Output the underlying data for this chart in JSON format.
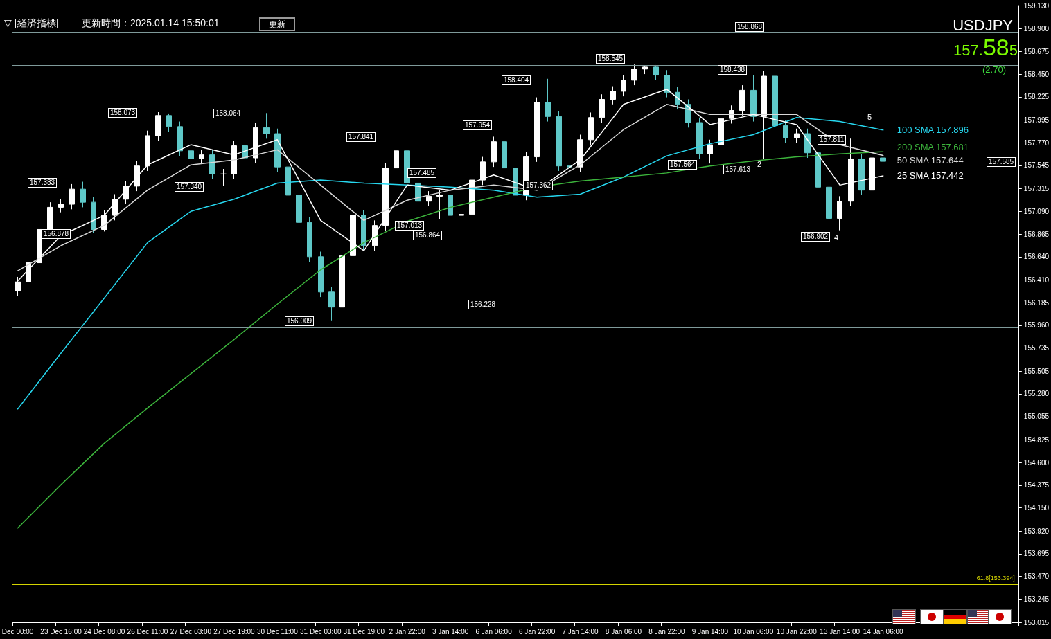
{
  "chart_data": {
    "type": "candlestick",
    "title": "USDJPY",
    "categories": [
      "Dec 00:00",
      null,
      null,
      null,
      "23 Dec 16:00",
      null,
      null,
      null,
      "24 Dec 08:00",
      null,
      null,
      null,
      "26 Dec 11:00",
      null,
      null,
      null,
      "27 Dec 03:00",
      null,
      null,
      null,
      "27 Dec 19:00",
      null,
      null,
      null,
      "30 Dec 11:00",
      null,
      null,
      null,
      "31 Dec 03:00",
      null,
      null,
      null,
      "31 Dec 19:00",
      null,
      null,
      null,
      "2 Jan 22:00",
      null,
      null,
      null,
      "3 Jan 14:00",
      null,
      null,
      null,
      "6 Jan 06:00",
      null,
      null,
      null,
      "6 Jan 22:00",
      null,
      null,
      null,
      "7 Jan 14:00",
      null,
      null,
      null,
      "8 Jan 06:00",
      null,
      null,
      null,
      "8 Jan 22:00",
      null,
      null,
      null,
      "9 Jan 14:00",
      null,
      null,
      null,
      "10 Jan 06:00",
      null,
      null,
      null,
      "10 Jan 22:00",
      null,
      null,
      null,
      "13 Jan 14:00",
      null,
      null,
      null,
      "14 Jan 06:00",
      null,
      null,
      null,
      null,
      null,
      null,
      null,
      null,
      null,
      null,
      null,
      null
    ],
    "series": [
      {
        "ohlc": [
          [
            156.3,
            156.44,
            156.25,
            156.39
          ],
          [
            156.39,
            156.63,
            156.34,
            156.58
          ],
          [
            156.58,
            156.96,
            156.53,
            156.91
          ],
          [
            156.91,
            157.18,
            156.86,
            157.13
          ],
          [
            157.13,
            157.21,
            157.08,
            157.16
          ],
          [
            157.16,
            157.36,
            157.11,
            157.31
          ],
          [
            157.31,
            157.383,
            157.13,
            157.18
          ],
          [
            157.18,
            157.23,
            156.878,
            156.91
          ],
          [
            156.91,
            157.1,
            156.89,
            157.05
          ],
          [
            157.05,
            157.26,
            157.0,
            157.21
          ],
          [
            157.21,
            157.39,
            157.16,
            157.34
          ],
          [
            157.34,
            157.59,
            157.29,
            157.54
          ],
          [
            157.54,
            157.89,
            157.49,
            157.84
          ],
          [
            157.84,
            158.073,
            157.79,
            158.04
          ],
          [
            158.04,
            158.06,
            157.88,
            157.93
          ],
          [
            157.93,
            157.98,
            157.64,
            157.69
          ],
          [
            157.69,
            157.74,
            157.56,
            157.61
          ],
          [
            157.61,
            157.7,
            157.56,
            157.65
          ],
          [
            157.65,
            157.7,
            157.41,
            157.46
          ],
          [
            157.46,
            157.51,
            157.34,
            157.46
          ],
          [
            157.46,
            157.79,
            157.41,
            157.74
          ],
          [
            157.74,
            157.79,
            157.57,
            157.62
          ],
          [
            157.62,
            157.97,
            157.57,
            157.92
          ],
          [
            157.92,
            158.064,
            157.81,
            157.86
          ],
          [
            157.86,
            157.91,
            157.48,
            157.53
          ],
          [
            157.53,
            157.58,
            157.2,
            157.25
          ],
          [
            157.25,
            157.3,
            156.93,
            156.98
          ],
          [
            156.98,
            157.03,
            156.59,
            156.64
          ],
          [
            156.64,
            156.69,
            156.24,
            156.29
          ],
          [
            156.29,
            156.34,
            156.009,
            156.14
          ],
          [
            156.14,
            156.7,
            156.09,
            156.65
          ],
          [
            156.65,
            157.1,
            156.6,
            157.05
          ],
          [
            157.05,
            157.1,
            156.7,
            156.75
          ],
          [
            156.75,
            157.0,
            156.7,
            156.95
          ],
          [
            156.95,
            157.57,
            156.9,
            157.52
          ],
          [
            157.52,
            157.841,
            157.47,
            157.69
          ],
          [
            157.69,
            157.74,
            157.32,
            157.37
          ],
          [
            157.37,
            157.42,
            157.14,
            157.19
          ],
          [
            157.19,
            157.29,
            157.14,
            157.24
          ],
          [
            157.24,
            157.3,
            157.013,
            157.25
          ],
          [
            157.25,
            157.485,
            157.0,
            157.05
          ],
          [
            157.05,
            157.11,
            156.864,
            157.06
          ],
          [
            157.06,
            157.45,
            157.01,
            157.4
          ],
          [
            157.4,
            157.63,
            157.35,
            157.58
          ],
          [
            157.58,
            157.83,
            157.53,
            157.78
          ],
          [
            157.78,
            157.954,
            157.47,
            157.52
          ],
          [
            157.52,
            157.57,
            156.228,
            157.25
          ],
          [
            157.25,
            157.68,
            157.2,
            157.63
          ],
          [
            157.63,
            158.22,
            157.58,
            158.17
          ],
          [
            158.17,
            158.404,
            157.98,
            158.03
          ],
          [
            158.03,
            158.08,
            157.49,
            157.54
          ],
          [
            157.54,
            157.59,
            157.362,
            157.53
          ],
          [
            157.53,
            157.85,
            157.48,
            157.8
          ],
          [
            157.8,
            158.07,
            157.75,
            158.02
          ],
          [
            158.02,
            158.25,
            157.97,
            158.2
          ],
          [
            158.2,
            158.33,
            158.15,
            158.28
          ],
          [
            158.28,
            158.44,
            158.23,
            158.39
          ],
          [
            158.39,
            158.545,
            158.34,
            158.5
          ],
          [
            158.5,
            158.53,
            158.45,
            158.52
          ],
          [
            158.52,
            158.54,
            158.39,
            158.44
          ],
          [
            158.44,
            158.49,
            158.22,
            158.27
          ],
          [
            158.27,
            158.32,
            158.1,
            158.15
          ],
          [
            158.15,
            158.2,
            157.92,
            157.97
          ],
          [
            157.97,
            158.02,
            157.61,
            157.66
          ],
          [
            157.66,
            157.8,
            157.564,
            157.75
          ],
          [
            157.75,
            158.06,
            157.7,
            158.01
          ],
          [
            158.01,
            158.14,
            157.96,
            158.09
          ],
          [
            158.09,
            158.34,
            158.04,
            158.29
          ],
          [
            158.29,
            158.438,
            157.98,
            158.03
          ],
          [
            158.03,
            158.48,
            157.613,
            158.43
          ],
          [
            158.43,
            158.868,
            157.89,
            157.94
          ],
          [
            157.94,
            157.99,
            157.77,
            157.82
          ],
          [
            157.82,
            157.91,
            157.77,
            157.86
          ],
          [
            157.86,
            157.91,
            157.62,
            157.67
          ],
          [
            157.67,
            157.72,
            157.28,
            157.33
          ],
          [
            157.33,
            157.38,
            156.97,
            157.02
          ],
          [
            157.02,
            157.24,
            156.902,
            157.19
          ],
          [
            157.19,
            157.811,
            157.14,
            157.61
          ],
          [
            157.61,
            157.66,
            157.25,
            157.3
          ],
          [
            157.3,
            157.99,
            157.05,
            157.62
          ],
          [
            157.62,
            157.67,
            157.5,
            157.585
          ],
          null,
          null,
          null,
          null,
          null,
          null,
          null,
          null,
          null,
          null,
          null,
          null
        ]
      },
      {
        "type": "line",
        "name": "100 SMA 157.896",
        "color": "#27d8f0",
        "x": [
          "Dec 00:00",
          "23 Dec 16:00",
          "24 Dec 08:00",
          "26 Dec 11:00",
          "27 Dec 03:00",
          "27 Dec 19:00",
          "30 Dec 11:00",
          "31 Dec 03:00",
          "31 Dec 19:00",
          "2 Jan 22:00",
          "3 Jan 14:00",
          "6 Jan 06:00",
          "6 Jan 22:00",
          "7 Jan 14:00",
          "8 Jan 06:00",
          "8 Jan 22:00",
          "9 Jan 14:00",
          "10 Jan 06:00",
          "10 Jan 22:00",
          "13 Jan 14:00",
          "14 Jan 06:00"
        ],
        "values": [
          155.13,
          155.685,
          156.23,
          156.78,
          157.09,
          157.21,
          157.37,
          157.4,
          157.37,
          157.35,
          157.33,
          157.3,
          157.23,
          157.26,
          157.43,
          157.64,
          157.76,
          157.85,
          158.02,
          157.98,
          157.896
        ]
      },
      {
        "type": "line",
        "name": "200 SMA 157.681",
        "color": "#3cb43c",
        "x": [
          "Dec 00:00",
          "23 Dec 16:00",
          "24 Dec 08:00",
          "26 Dec 11:00",
          "27 Dec 03:00",
          "27 Dec 19:00",
          "30 Dec 11:00",
          "31 Dec 03:00",
          "31 Dec 19:00",
          "2 Jan 22:00",
          "3 Jan 14:00",
          "6 Jan 06:00",
          "6 Jan 22:00",
          "7 Jan 14:00",
          "8 Jan 06:00",
          "8 Jan 22:00",
          "9 Jan 14:00",
          "10 Jan 06:00",
          "10 Jan 22:00",
          "13 Jan 14:00",
          "14 Jan 06:00"
        ],
        "values": [
          153.95,
          154.38,
          154.79,
          155.14,
          155.48,
          155.82,
          156.17,
          156.51,
          156.78,
          156.99,
          157.13,
          157.23,
          157.33,
          157.39,
          157.43,
          157.47,
          157.54,
          157.59,
          157.63,
          157.66,
          157.681
        ]
      },
      {
        "type": "line",
        "name": "50 SMA 157.644",
        "color": "#d8d8d8",
        "x": [
          "Dec 00:00",
          "23 Dec 16:00",
          "24 Dec 08:00",
          "26 Dec 11:00",
          "27 Dec 03:00",
          "27 Dec 19:00",
          "30 Dec 11:00",
          "31 Dec 03:00",
          "31 Dec 19:00",
          "2 Jan 22:00",
          "3 Jan 14:00",
          "6 Jan 06:00",
          "6 Jan 22:00",
          "7 Jan 14:00",
          "8 Jan 06:00",
          "8 Jan 22:00",
          "9 Jan 14:00",
          "10 Jan 06:00",
          "10 Jan 22:00",
          "13 Jan 14:00",
          "14 Jan 06:00"
        ],
        "values": [
          156.5,
          156.75,
          156.95,
          157.3,
          157.55,
          157.6,
          157.7,
          157.35,
          157.0,
          157.2,
          157.3,
          157.35,
          157.3,
          157.55,
          157.9,
          158.15,
          158.05,
          158.05,
          158.05,
          157.75,
          157.644
        ]
      },
      {
        "type": "line",
        "name": "25 SMA 157.442",
        "color": "#ffffff",
        "x": [
          "Dec 00:00",
          "23 Dec 16:00",
          "24 Dec 08:00",
          "26 Dec 11:00",
          "27 Dec 03:00",
          "27 Dec 19:00",
          "30 Dec 11:00",
          "31 Dec 03:00",
          "31 Dec 19:00",
          "2 Jan 22:00",
          "3 Jan 14:00",
          "6 Jan 06:00",
          "6 Jan 22:00",
          "7 Jan 14:00",
          "8 Jan 06:00",
          "8 Jan 22:00",
          "9 Jan 14:00",
          "10 Jan 06:00",
          "10 Jan 22:00",
          "13 Jan 14:00",
          "14 Jan 06:00"
        ],
        "values": [
          156.4,
          156.85,
          157.05,
          157.55,
          157.75,
          157.65,
          157.8,
          157.0,
          156.7,
          157.35,
          157.3,
          157.45,
          157.3,
          157.6,
          158.15,
          158.3,
          157.95,
          158.05,
          157.95,
          157.35,
          157.442
        ]
      }
    ],
    "ylim": [
      153.015,
      159.13
    ],
    "yticks": [
      {
        "value": 159.13,
        "label": "159.130"
      },
      {
        "value": 158.9,
        "label": "158.900"
      },
      158.675,
      {
        "value": 158.45,
        "label": "158.450"
      },
      158.225,
      157.995,
      {
        "value": 157.77,
        "label": "157.770"
      },
      157.545,
      157.315,
      {
        "value": 157.09,
        "label": "157.090"
      },
      156.865,
      {
        "value": 156.64,
        "label": "156.640"
      },
      {
        "value": 156.41,
        "label": "156.410"
      },
      156.185,
      {
        "value": 155.96,
        "label": "155.960"
      },
      155.735,
      155.505,
      {
        "value": 155.28,
        "label": "155.280"
      },
      155.055,
      154.825,
      {
        "value": 154.6,
        "label": "154.600"
      },
      154.375,
      {
        "value": 154.15,
        "label": "154.150"
      },
      {
        "value": 153.92,
        "label": "153.920"
      },
      153.695,
      {
        "value": 153.47,
        "label": "153.470"
      },
      153.245,
      153.015
    ],
    "ref_lines": [
      {
        "axis": "y",
        "value": 153.394,
        "label": "61.8[153.394]",
        "color": "#d4d400",
        "line_style": "solid"
      },
      {
        "axis": "y",
        "value": 158.868,
        "color": "#7f9a9a",
        "line_style": "solid"
      },
      {
        "axis": "y",
        "value": 158.545,
        "color": "#7f9a9a",
        "line_style": "solid"
      },
      {
        "axis": "y",
        "value": 158.438,
        "color": "#7f9a9a",
        "line_style": "solid"
      },
      {
        "axis": "y",
        "value": 156.902,
        "color": "#7f9a9a",
        "line_style": "solid"
      },
      {
        "axis": "y",
        "value": 156.228,
        "color": "#7f9a9a",
        "line_style": "solid"
      },
      {
        "axis": "y",
        "value": 155.945,
        "color": "#7f9a9a",
        "line_style": "solid"
      },
      {
        "axis": "y",
        "value": 153.15,
        "color": "#7f9a9a",
        "line_style": "solid"
      }
    ],
    "annotations": [
      "▽ [経済指標]",
      "更新時間：2025.01.14 15:50:01",
      "更新",
      "157.585",
      "(2.70)",
      "5",
      "157.383",
      "156.878",
      "158.073",
      "157.340",
      "158.064",
      "156.009",
      "157.841",
      "157.013",
      "157.485",
      "156.864",
      "157.954",
      "156.228",
      "158.404",
      "157.362",
      "158.545",
      "157.564",
      "158.438",
      "157.613",
      "158.868",
      "156.902",
      "157.811",
      "2",
      "4",
      "157.585"
    ],
    "grid": false,
    "legend": "right",
    "marker": "none",
    "line_style": "solid"
  }
}
